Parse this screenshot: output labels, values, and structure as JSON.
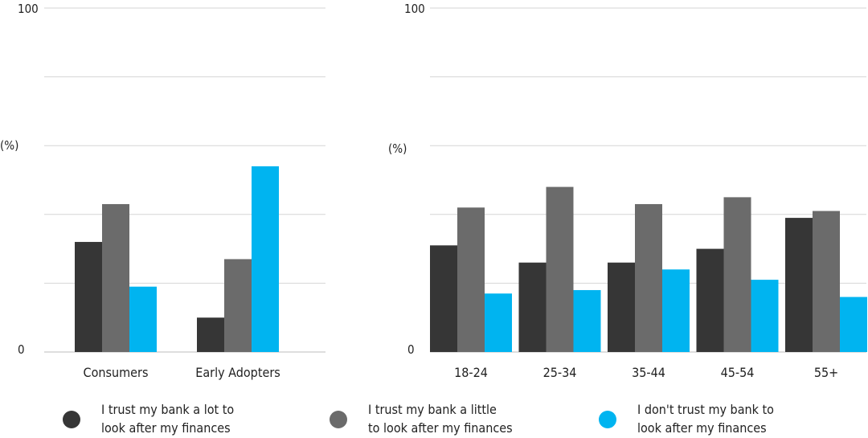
{
  "colors": {
    "trust_lot": "#363636",
    "trust_little": "#6b6b6b",
    "no_trust": "#00b4f0"
  },
  "legend": [
    {
      "line1": "I trust my bank a lot to",
      "line2": "look after my finances",
      "color_key": "trust_lot"
    },
    {
      "line1": "I trust my bank a little",
      "line2": "to look after my finances",
      "color_key": "trust_little"
    },
    {
      "line1": "I don't trust my bank to",
      "line2": "look after my finances",
      "color_key": "no_trust"
    }
  ],
  "chart_data": [
    {
      "type": "bar",
      "ylabel": "(%)",
      "ylim": [
        0,
        100
      ],
      "yticks": [
        "100",
        "0"
      ],
      "grid": true,
      "categories": [
        "Consumers",
        "Early Adopters"
      ],
      "series": [
        {
          "name": "I trust my bank a lot to look after my finances",
          "color_key": "trust_lot",
          "values": [
            32,
            10
          ]
        },
        {
          "name": "I trust my bank a little to look after my finances",
          "color_key": "trust_little",
          "values": [
            43,
            27
          ]
        },
        {
          "name": "I don't trust my bank to look after my finances",
          "color_key": "no_trust",
          "values": [
            19,
            54
          ]
        }
      ]
    },
    {
      "type": "bar",
      "ylabel": "(%)",
      "ylim": [
        0,
        100
      ],
      "yticks": [
        "100",
        "0"
      ],
      "grid": true,
      "categories": [
        "18-24",
        "25-34",
        "35-44",
        "45-54",
        "55+"
      ],
      "series": [
        {
          "name": "I trust my bank a lot to look after my finances",
          "color_key": "trust_lot",
          "values": [
            31,
            26,
            26,
            30,
            39
          ]
        },
        {
          "name": "I trust my bank a little to look after my finances",
          "color_key": "trust_little",
          "values": [
            42,
            48,
            43,
            45,
            41
          ]
        },
        {
          "name": "I don't trust my bank to look after my finances",
          "color_key": "no_trust",
          "values": [
            17,
            18,
            24,
            21,
            16
          ]
        }
      ]
    }
  ]
}
